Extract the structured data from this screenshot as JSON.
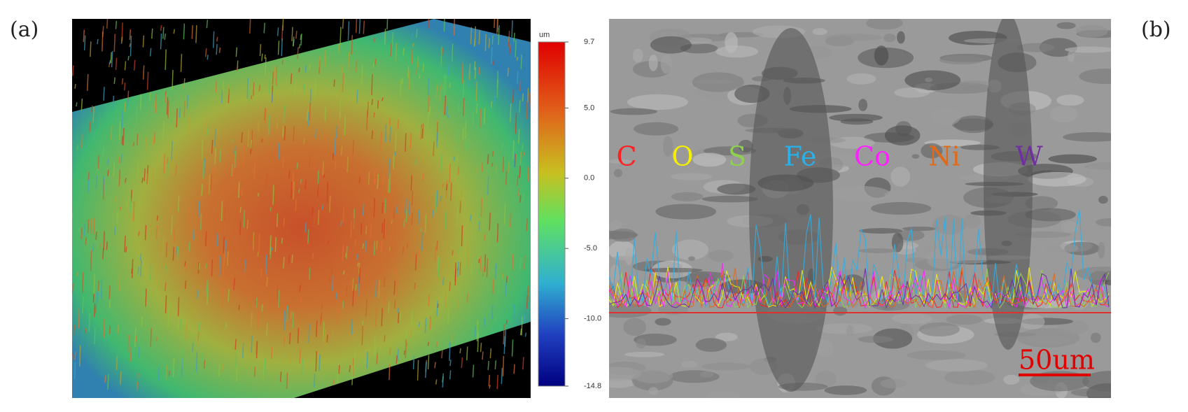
{
  "panel_a": {
    "label": "(a)",
    "colorbar_unit": "um",
    "colorbar_ticks": [
      "9.7",
      "5.0",
      "0.0",
      "-5.0",
      "-10.0",
      "-14.8"
    ]
  },
  "panel_b": {
    "label": "(b)",
    "scale_bar": "50um",
    "elements": [
      {
        "name": "C",
        "color": "#ff2020"
      },
      {
        "name": "O",
        "color": "#f5f000"
      },
      {
        "name": "S",
        "color": "#8fd14f"
      },
      {
        "name": "Fe",
        "color": "#2ab0e8"
      },
      {
        "name": "Co",
        "color": "#ff20ff"
      },
      {
        "name": "Ni",
        "color": "#e06a1a"
      },
      {
        "name": "W",
        "color": "#7030a0"
      }
    ]
  }
}
